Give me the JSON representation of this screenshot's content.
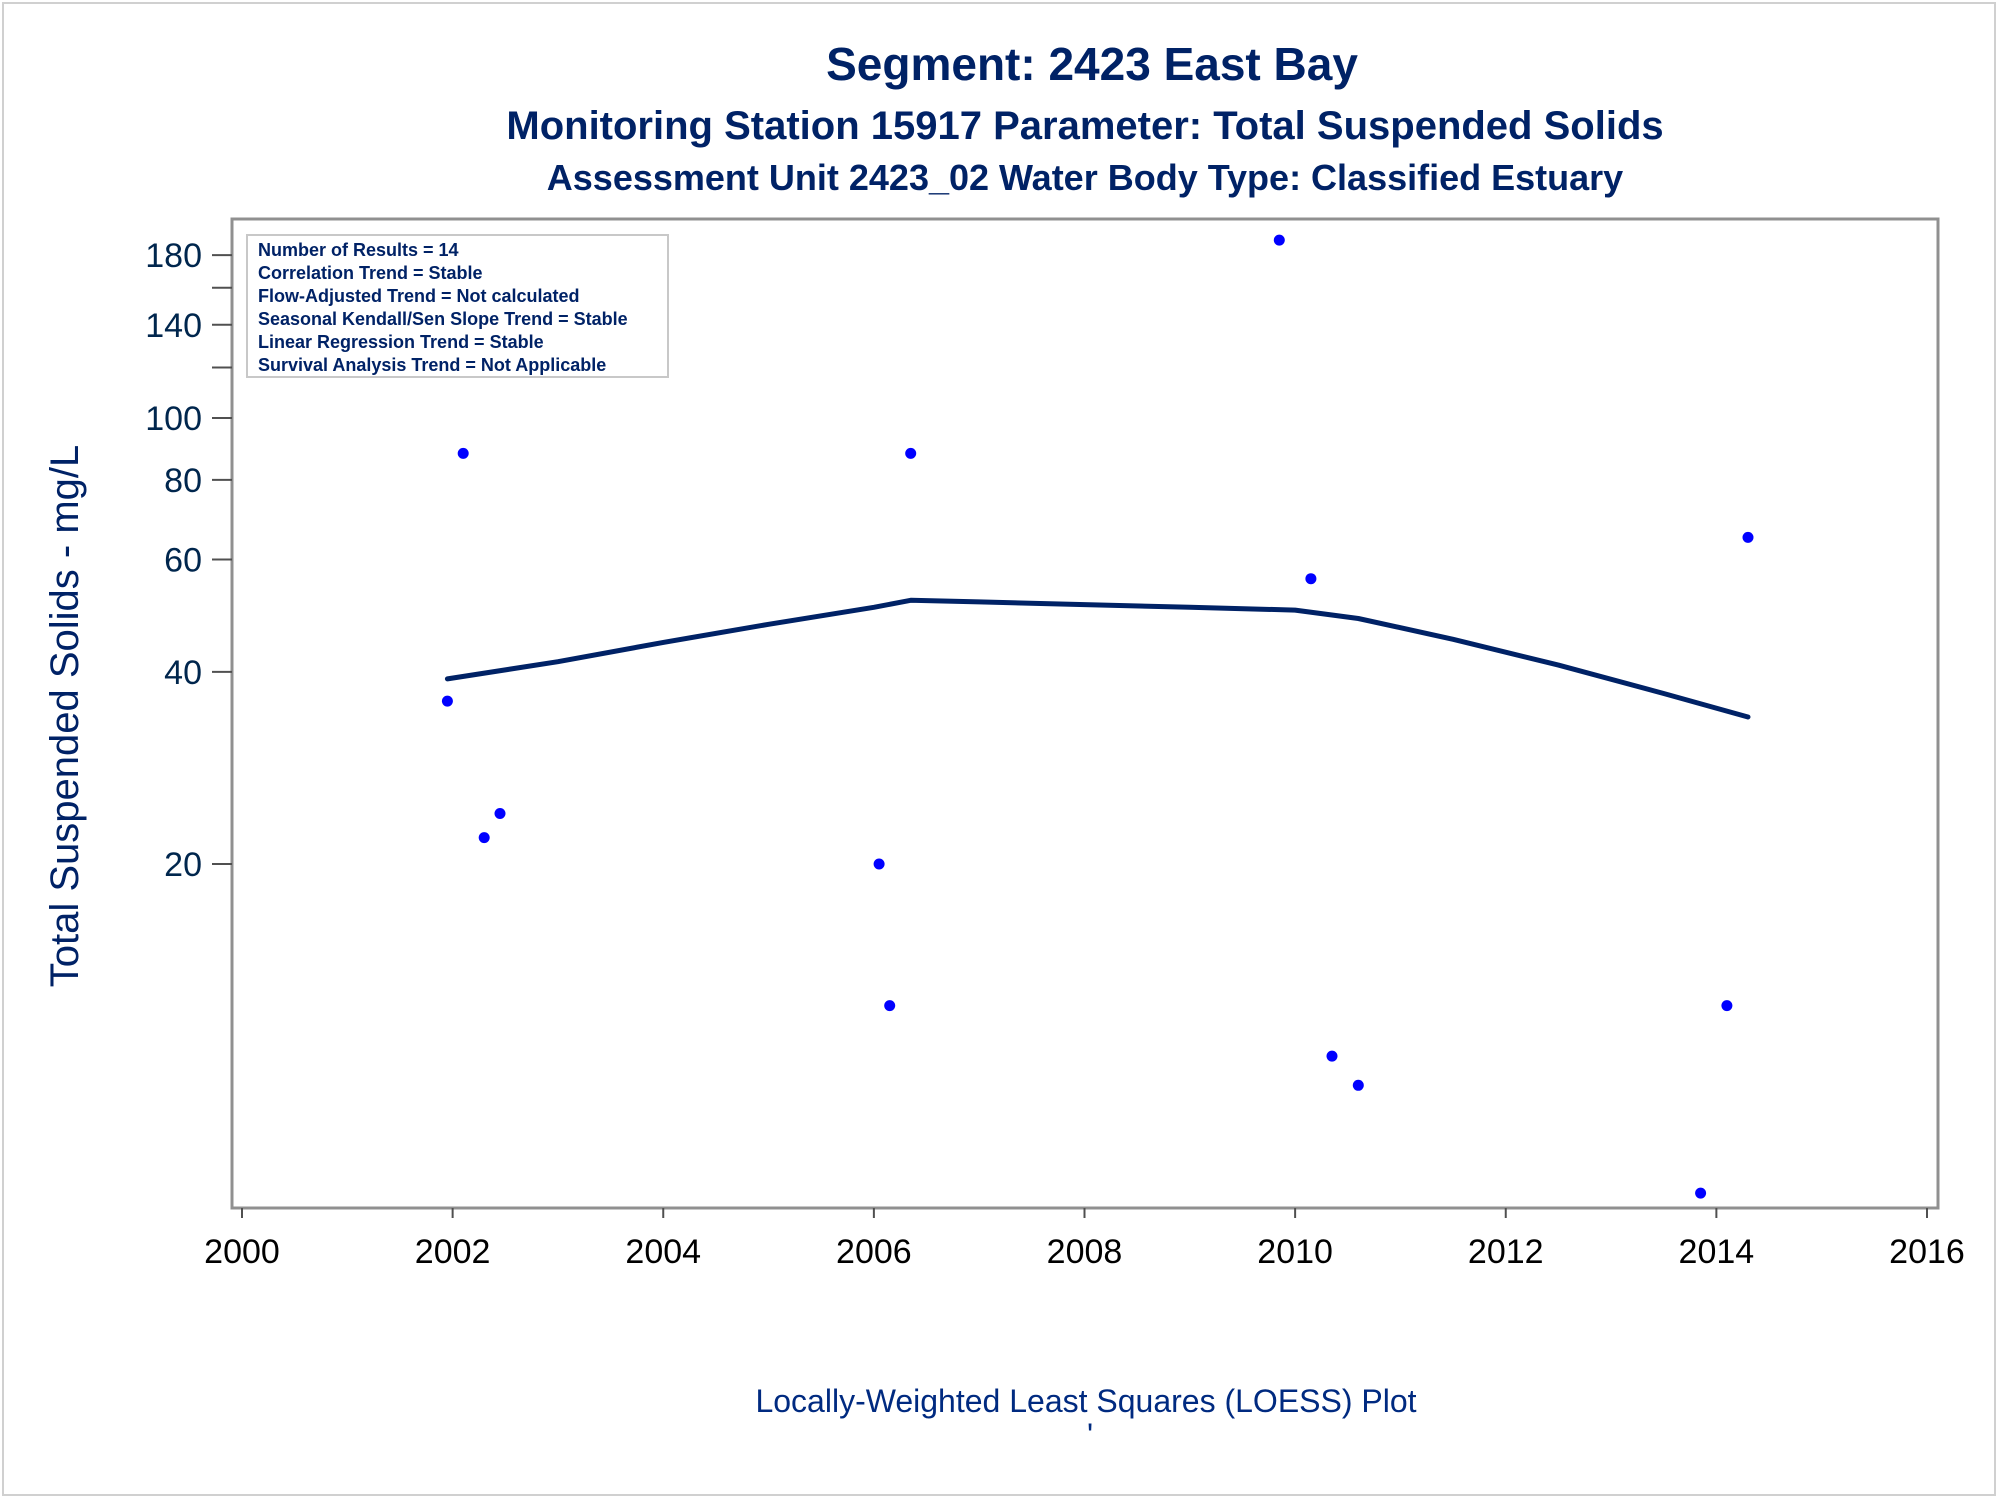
{
  "chart_data": {
    "type": "scatter",
    "title": "Segment: 2423  East Bay",
    "subtitle1": "Monitoring Station 15917 Parameter: Total Suspended Solids",
    "subtitle2": "Assessment Unit 2423_02   Water Body Type: Classified Estuary",
    "ylabel": "Total Suspended Solids - mg/L",
    "footnote": "Locally-Weighted Least Squares (LOESS) Plot",
    "footnote_mark": "'",
    "y_scale": "log",
    "xlim": [
      2000,
      2016
    ],
    "x_ticks": [
      "2000",
      "2002",
      "2004",
      "2006",
      "2008",
      "2010",
      "2012",
      "2014",
      "2016"
    ],
    "y_ticks": [
      "20",
      "40",
      "60",
      "80",
      "100",
      "140",
      "180"
    ],
    "grid": false,
    "legend": false,
    "inset_position": "top-left",
    "colors": {
      "points": "#0000ff",
      "loess": "#002266",
      "text": "#002266",
      "axis": "#909090"
    },
    "inset_lines": [
      "Number of Results = 14",
      "Correlation Trend = Stable",
      "Flow-Adjusted Trend = Not calculated",
      "Seasonal Kendall/Sen Slope Trend = Stable",
      "Linear Regression Trend = Stable",
      "Survival Analysis Trend = Not Applicable"
    ],
    "series": [
      {
        "kind": "points",
        "points": [
          {
            "x": 2001.95,
            "y": 36
          },
          {
            "x": 2002.1,
            "y": 88
          },
          {
            "x": 2002.3,
            "y": 22
          },
          {
            "x": 2002.45,
            "y": 24
          },
          {
            "x": 2006.05,
            "y": 20
          },
          {
            "x": 2006.15,
            "y": 12
          },
          {
            "x": 2006.35,
            "y": 88
          },
          {
            "x": 2009.85,
            "y": 190
          },
          {
            "x": 2010.15,
            "y": 56
          },
          {
            "x": 2010.35,
            "y": 10
          },
          {
            "x": 2010.6,
            "y": 9
          },
          {
            "x": 2013.85,
            "y": 6.1
          },
          {
            "x": 2014.1,
            "y": 12
          },
          {
            "x": 2014.3,
            "y": 65
          }
        ]
      },
      {
        "kind": "loess",
        "points": [
          {
            "x": 2001.95,
            "y": 39
          },
          {
            "x": 2003,
            "y": 41.5
          },
          {
            "x": 2004,
            "y": 44.5
          },
          {
            "x": 2005,
            "y": 47.5
          },
          {
            "x": 2006,
            "y": 50.5
          },
          {
            "x": 2006.35,
            "y": 51.8
          },
          {
            "x": 2007,
            "y": 51.5
          },
          {
            "x": 2008,
            "y": 51
          },
          {
            "x": 2009,
            "y": 50.5
          },
          {
            "x": 2010,
            "y": 50
          },
          {
            "x": 2010.6,
            "y": 48.5
          },
          {
            "x": 2011.5,
            "y": 45
          },
          {
            "x": 2012.5,
            "y": 41
          },
          {
            "x": 2013.5,
            "y": 37
          },
          {
            "x": 2014.3,
            "y": 34
          }
        ]
      }
    ]
  }
}
